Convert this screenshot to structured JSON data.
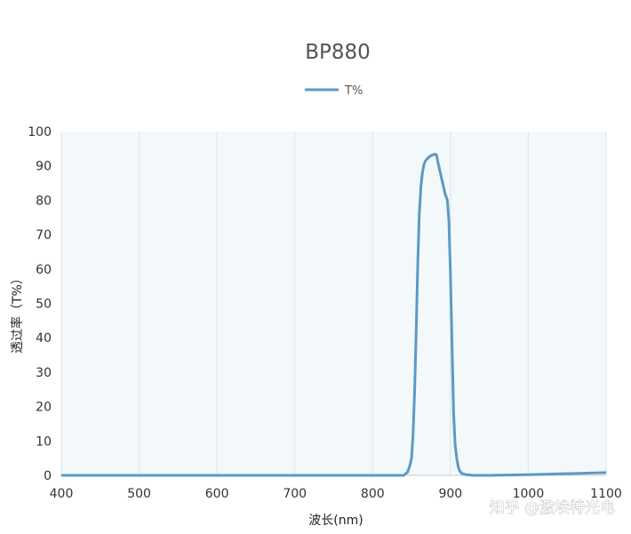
{
  "chart_data": {
    "type": "line",
    "title": "BP880",
    "xlabel": "波长(nm)",
    "ylabel": "透过率（T%）",
    "xlim": [
      400,
      1100
    ],
    "ylim": [
      0,
      100
    ],
    "xticks": [
      400,
      500,
      600,
      700,
      800,
      900,
      1000,
      1100
    ],
    "yticks": [
      0,
      10,
      20,
      30,
      40,
      50,
      60,
      70,
      80,
      90,
      100
    ],
    "grid": true,
    "legend_position": "top-center",
    "series": [
      {
        "name": "T%",
        "color": "#5b9ac4",
        "x": [
          400,
          500,
          600,
          700,
          800,
          840,
          845,
          848,
          850,
          852,
          854,
          856,
          858,
          860,
          862,
          864,
          866,
          868,
          870,
          872,
          875,
          878,
          880,
          882,
          884,
          886,
          888,
          890,
          893,
          896,
          898,
          900,
          902,
          904,
          906,
          908,
          910,
          912,
          915,
          920,
          930,
          950,
          1000,
          1050,
          1100
        ],
        "y": [
          0,
          0,
          0,
          0,
          0,
          0,
          1,
          3,
          5,
          12,
          25,
          42,
          62,
          76,
          84,
          88,
          90.5,
          91.5,
          92,
          92.5,
          93,
          93.2,
          93.4,
          93.2,
          91,
          89,
          87,
          85,
          82,
          80,
          74,
          58,
          38,
          18,
          9,
          5,
          2.5,
          1.2,
          0.5,
          0.2,
          0,
          0,
          0.2,
          0.5,
          0.8
        ]
      }
    ]
  },
  "watermark": "知乎 @激埃特光电"
}
